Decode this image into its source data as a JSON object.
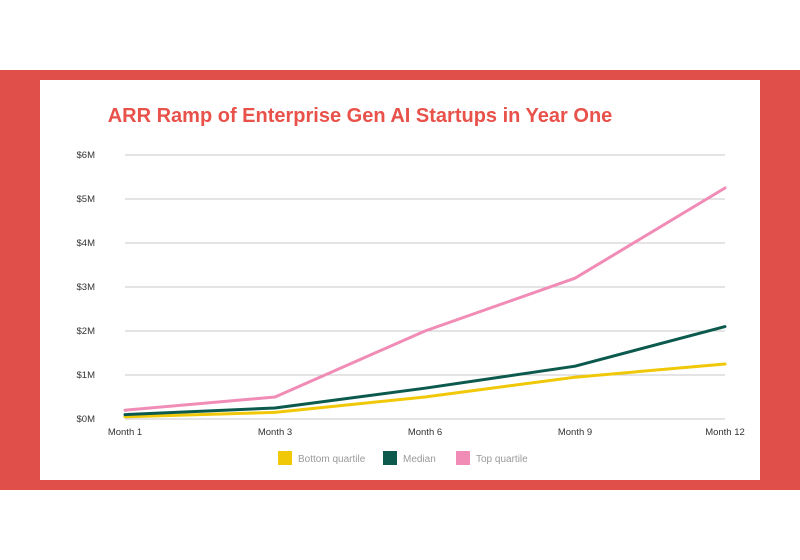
{
  "colors": {
    "background_band": "#e04f4a",
    "title": "#e8524a",
    "grid": "#c9c9c9"
  },
  "chart_data": {
    "type": "line",
    "title": "ARR Ramp of Enterprise Gen AI Startups in Year One",
    "xlabel": "",
    "ylabel": "",
    "categories": [
      "Month 1",
      "Month 3",
      "Month 6",
      "Month 9",
      "Month 12"
    ],
    "ylim": [
      0,
      6
    ],
    "y_ticks": [
      {
        "value": 0,
        "label": "$0M"
      },
      {
        "value": 1,
        "label": "$1M"
      },
      {
        "value": 2,
        "label": "$2M"
      },
      {
        "value": 3,
        "label": "$3M"
      },
      {
        "value": 4,
        "label": "$4M"
      },
      {
        "value": 5,
        "label": "$5M"
      },
      {
        "value": 6,
        "label": "$6M"
      }
    ],
    "grid": true,
    "legend_position": "bottom-center",
    "series": [
      {
        "name": "Bottom quartile",
        "color": "#f0c808",
        "values": [
          0.05,
          0.15,
          0.5,
          0.95,
          1.25
        ]
      },
      {
        "name": "Median",
        "color": "#0c5a4d",
        "values": [
          0.1,
          0.25,
          0.7,
          1.2,
          2.1
        ]
      },
      {
        "name": "Top quartile",
        "color": "#f08cb6",
        "values": [
          0.2,
          0.5,
          2.0,
          3.2,
          5.25
        ]
      }
    ]
  }
}
